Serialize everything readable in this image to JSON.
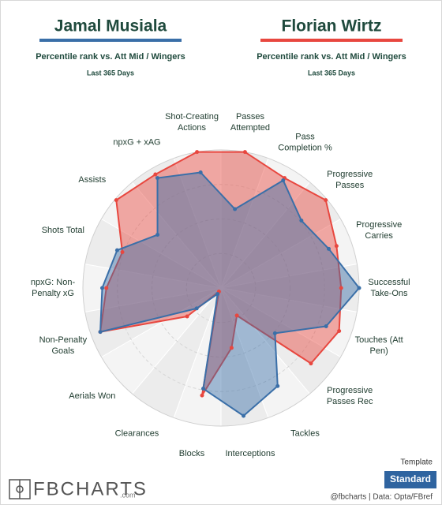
{
  "chart_data": {
    "type": "radar",
    "subtitle": "Percentile rank vs. Att Mid / Wingers",
    "period": "Last 365 Days",
    "categories": [
      "Passes Attempted",
      "Pass Completion %",
      "Progressive Passes",
      "Progressive Carries",
      "Successful Take-Ons",
      "Touches (Att Pen)",
      "Progressive Passes Rec",
      "Tackles",
      "Interceptions",
      "Blocks",
      "Clearances",
      "Aerials Won",
      "Non-Penalty Goals",
      "npxG: Non-Penalty xG",
      "Shots Total",
      "Assists",
      "npxG + xAG",
      "Shot-Creating Actions"
    ],
    "series": [
      {
        "name": "Jamal Musiala",
        "color": "#3a6fa8",
        "values": [
          58,
          90,
          76,
          83,
          100,
          81,
          51,
          82,
          94,
          74,
          5,
          23,
          93,
          86,
          80,
          60,
          92,
          85
        ]
      },
      {
        "name": "Florian Wirtz",
        "color": "#e8473f",
        "values": [
          100,
          92,
          99,
          89,
          87,
          91,
          85,
          23,
          44,
          79,
          3,
          32,
          93,
          83,
          76,
          99,
          95,
          100
        ]
      }
    ],
    "rlim": [
      0,
      100
    ],
    "rticks": [
      25,
      50,
      75,
      100
    ]
  },
  "footer": {
    "template_label": "Template",
    "template_button": "Standard",
    "logo": "FBCHARTS",
    "logo_suffix": ".com",
    "credit": "@fbcharts | Data: Opta/FBref"
  }
}
